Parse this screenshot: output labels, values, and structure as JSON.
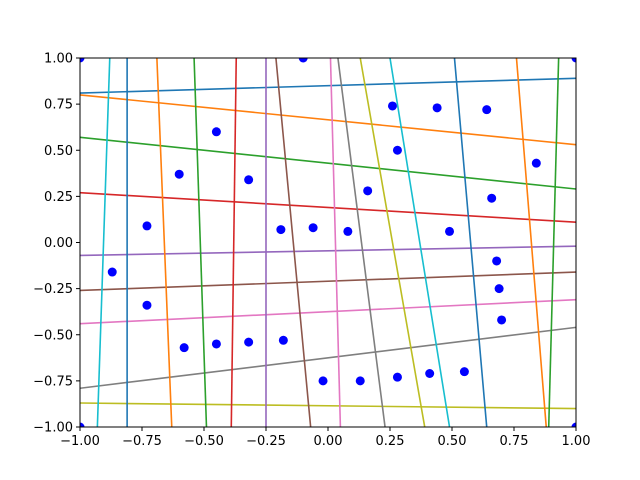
{
  "chart_data": {
    "type": "line",
    "title": "",
    "xlabel": "",
    "ylabel": "",
    "xlim": [
      -1.0,
      1.0
    ],
    "ylim": [
      -1.0,
      1.0
    ],
    "grid": false,
    "legend": "none",
    "x_ticks": [
      "−1.00",
      "−0.75",
      "−0.50",
      "−0.25",
      "0.00",
      "0.25",
      "0.50",
      "0.75",
      "1.00"
    ],
    "y_ticks": [
      "−1.00",
      "−0.75",
      "−0.50",
      "−0.25",
      "0.00",
      "0.25",
      "0.50",
      "0.75",
      "1.00"
    ],
    "x_tick_values": [
      -1.0,
      -0.75,
      -0.5,
      -0.25,
      0.0,
      0.25,
      0.5,
      0.75,
      1.0
    ],
    "y_tick_values": [
      -1.0,
      -0.75,
      -0.5,
      -0.25,
      0.0,
      0.25,
      0.5,
      0.75,
      1.0
    ],
    "series": [
      {
        "color": "#1f77b4",
        "x": [
          -1.0,
          1.0
        ],
        "y": [
          0.81,
          0.89
        ]
      },
      {
        "color": "#ff7f0e",
        "x": [
          -1.0,
          1.0
        ],
        "y": [
          0.8,
          0.53
        ]
      },
      {
        "color": "#2ca02c",
        "x": [
          -1.0,
          1.0
        ],
        "y": [
          0.57,
          0.29
        ]
      },
      {
        "color": "#d62728",
        "x": [
          -1.0,
          1.0
        ],
        "y": [
          0.27,
          0.11
        ]
      },
      {
        "color": "#9467bd",
        "x": [
          -1.0,
          1.0
        ],
        "y": [
          -0.07,
          -0.02
        ]
      },
      {
        "color": "#8c564b",
        "x": [
          -1.0,
          1.0
        ],
        "y": [
          -0.26,
          -0.16
        ]
      },
      {
        "color": "#e377c2",
        "x": [
          -1.0,
          1.0
        ],
        "y": [
          -0.44,
          -0.31
        ]
      },
      {
        "color": "#7f7f7f",
        "x": [
          -1.0,
          1.0
        ],
        "y": [
          -0.79,
          -0.46
        ]
      },
      {
        "color": "#bcbd22",
        "x": [
          -1.0,
          1.0
        ],
        "y": [
          -0.87,
          -0.9
        ]
      },
      {
        "color": "#17becf",
        "x": [
          -0.88,
          -0.93
        ],
        "y": [
          1.0,
          -1.0
        ]
      },
      {
        "color": "#1f77b4",
        "x": [
          -0.81,
          -0.81
        ],
        "y": [
          1.0,
          -1.0
        ]
      },
      {
        "color": "#ff7f0e",
        "x": [
          -0.69,
          -0.63
        ],
        "y": [
          1.0,
          -1.0
        ]
      },
      {
        "color": "#2ca02c",
        "x": [
          -0.54,
          -0.49
        ],
        "y": [
          1.0,
          -1.0
        ]
      },
      {
        "color": "#d62728",
        "x": [
          -0.37,
          -0.39
        ],
        "y": [
          1.0,
          -1.0
        ]
      },
      {
        "color": "#9467bd",
        "x": [
          -0.25,
          -0.25
        ],
        "y": [
          1.0,
          -1.0
        ]
      },
      {
        "color": "#8c564b",
        "x": [
          -0.21,
          -0.07
        ],
        "y": [
          1.0,
          -1.0
        ]
      },
      {
        "color": "#e377c2",
        "x": [
          0.01,
          0.05
        ],
        "y": [
          1.0,
          -1.0
        ]
      },
      {
        "color": "#7f7f7f",
        "x": [
          0.04,
          0.23
        ],
        "y": [
          1.0,
          -1.0
        ]
      },
      {
        "color": "#bcbd22",
        "x": [
          0.13,
          0.39
        ],
        "y": [
          1.0,
          -1.0
        ]
      },
      {
        "color": "#17becf",
        "x": [
          0.25,
          0.49
        ],
        "y": [
          1.0,
          -1.0
        ]
      },
      {
        "color": "#1f77b4",
        "x": [
          0.51,
          0.64
        ],
        "y": [
          1.0,
          -1.0
        ]
      },
      {
        "color": "#ff7f0e",
        "x": [
          0.76,
          0.88
        ],
        "y": [
          1.0,
          -1.0
        ]
      },
      {
        "color": "#2ca02c",
        "x": [
          0.93,
          0.89
        ],
        "y": [
          1.0,
          -1.0
        ]
      }
    ],
    "scatter_color": "#0000ff",
    "points": {
      "x": [
        -1.0,
        -0.1,
        1.0,
        0.26,
        0.44,
        0.64,
        -0.45,
        0.28,
        0.84,
        -0.6,
        -0.32,
        0.16,
        0.66,
        -0.73,
        -0.19,
        -0.06,
        0.08,
        0.49,
        -0.87,
        0.68,
        0.69,
        -0.73,
        0.7,
        -0.58,
        -0.45,
        -0.32,
        -0.18,
        -0.02,
        0.13,
        0.28,
        0.41,
        0.55,
        -1.0,
        1.0
      ],
      "y": [
        1.0,
        1.0,
        1.0,
        0.74,
        0.73,
        0.72,
        0.6,
        0.5,
        0.43,
        0.37,
        0.34,
        0.28,
        0.24,
        0.09,
        0.07,
        0.08,
        0.06,
        0.06,
        -0.16,
        -0.1,
        -0.25,
        -0.34,
        -0.42,
        -0.57,
        -0.55,
        -0.54,
        -0.53,
        -0.75,
        -0.75,
        -0.73,
        -0.71,
        -0.7,
        -1.0,
        -1.0
      ]
    }
  }
}
